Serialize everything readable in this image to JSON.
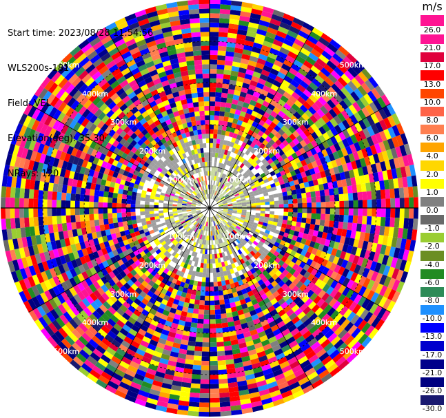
{
  "header": {
    "start_time": "Start time: 2023/08/28 11:54:56",
    "instrument": "WLS200s-181",
    "field": "Field: VEL",
    "elevation": "Elevation(deg): 35.30",
    "nrays": "NRays: 120"
  },
  "colorbar": {
    "unit": "m/s",
    "labels": [
      "26.0",
      "21.0",
      "17.0",
      "13.0",
      "10.0",
      "8.0",
      "6.0",
      "4.0",
      "2.0",
      "1.0",
      "0.0",
      "-1.0",
      "-2.0",
      "-4.0",
      "-6.0",
      "-8.0",
      "-10.0",
      "-13.0",
      "-17.0",
      "-21.0",
      "-26.0",
      "-30.0"
    ],
    "colors": [
      "#ff1493",
      "#ff1493",
      "#e0003c",
      "#ff0000",
      "#ff4500",
      "#ff6347",
      "#ff7f50",
      "#ffa500",
      "#ffd700",
      "#ffff00",
      "#808080",
      "#696969",
      "#9acd32",
      "#6b8e23",
      "#228b22",
      "#2e8b57",
      "#1e90ff",
      "#0000ff",
      "#0000cd",
      "#00008b",
      "#000080",
      "#191970"
    ]
  },
  "range_labels": [
    "100km",
    "200km",
    "300km",
    "400km",
    "500km"
  ],
  "ppi": {
    "rays": 120,
    "gates": 45,
    "max_range_km": 500
  }
}
